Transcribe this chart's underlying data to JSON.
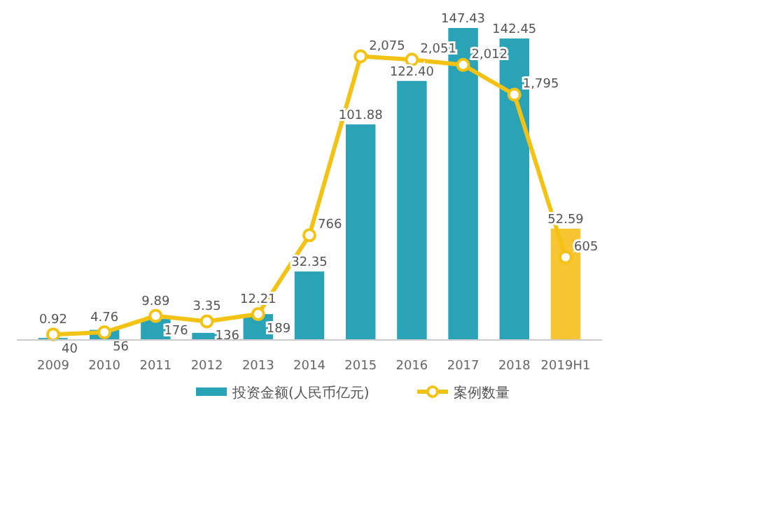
{
  "chart_data": {
    "type": "bar",
    "categories": [
      "2009",
      "2010",
      "2011",
      "2012",
      "2013",
      "2014",
      "2015",
      "2016",
      "2017",
      "2018",
      "2019H1"
    ],
    "series": [
      {
        "name": "投资金额(人民币亿元)",
        "color": "#2ba3b6",
        "colors": [
          "#2ba3b6",
          "#2ba3b6",
          "#2ba3b6",
          "#2ba3b6",
          "#2ba3b6",
          "#2ba3b6",
          "#2ba3b6",
          "#2ba3b6",
          "#2ba3b6",
          "#2ba3b6",
          "#f7c531"
        ],
        "values": [
          0.92,
          4.76,
          9.89,
          3.35,
          12.21,
          32.35,
          101.88,
          122.4,
          147.43,
          142.45,
          52.59
        ],
        "value_labels": [
          "0.92",
          "4.76",
          "9.89",
          "3.35",
          "12.21",
          "32.35",
          "101.88",
          "122.40",
          "147.43",
          "142.45",
          "52.59"
        ]
      },
      {
        "name": "案例数量",
        "type": "line",
        "axis": "y2",
        "color": "#f2c314",
        "values": [
          40,
          56,
          176,
          136,
          189,
          766,
          2075,
          2051,
          2012,
          1795,
          605
        ],
        "value_labels": [
          "40",
          "56",
          "176",
          "136",
          "189",
          "766",
          "2,075",
          "2,051",
          "2,012",
          "1,795",
          "605"
        ]
      }
    ],
    "data_labels": true,
    "legend": "bottom",
    "marker": "circle",
    "line_style": "solid",
    "grid": false
  }
}
